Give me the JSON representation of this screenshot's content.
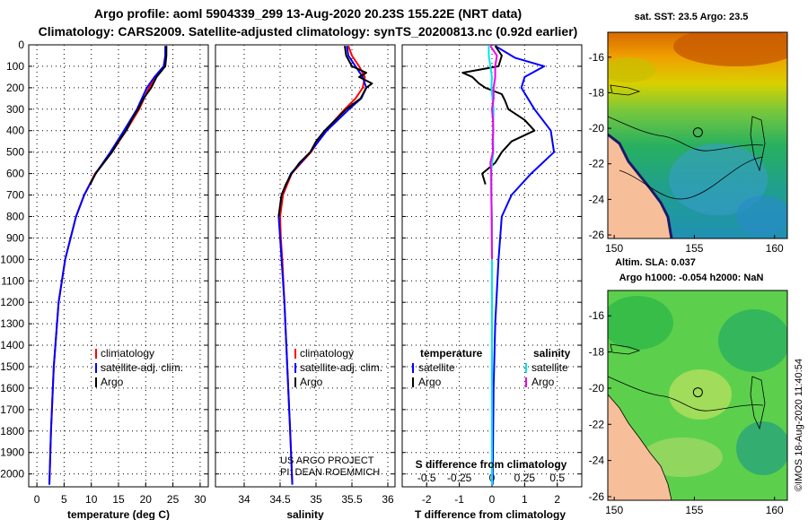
{
  "header": {
    "line1": "Argo profile: aoml 5904339_299 13-Aug-2020 20.23S 155.22E (NRT data)",
    "line2": "Climatology: CARS2009. Satellite-adjusted climatology: synTS_20200813.nc (0.92d earlier)"
  },
  "colors": {
    "climatology": "#ff0000",
    "satellite": "#0000ff",
    "argo": "#000000",
    "sat_temp": "#0000ff",
    "sat_sal": "#00e5ee",
    "argo_sal": "#ee00ee"
  },
  "credit": {
    "line1": "US ARGO PROJECT",
    "line2": "PI: DEAN ROEMMICH"
  },
  "copyright": "©IMOS 18-Aug-2020 11:40:54",
  "chart_data": [
    {
      "id": "temperature",
      "type": "line",
      "xlabel": "temperature (deg C)",
      "xlim": [
        -1.5,
        31.5
      ],
      "ylim": [
        0,
        2060
      ],
      "xticks": [
        0,
        5,
        10,
        15,
        20,
        25,
        30
      ],
      "yticks": [
        0,
        100,
        200,
        300,
        400,
        500,
        600,
        700,
        800,
        900,
        1000,
        1100,
        1200,
        1300,
        1400,
        1500,
        1600,
        1700,
        1800,
        1900,
        2000
      ],
      "legend": [
        "climatology",
        "satellite-adj. clim.",
        "Argo"
      ],
      "series": [
        {
          "name": "climatology",
          "color": "#ff0000",
          "depth": [
            5,
            50,
            100,
            150,
            200,
            300,
            400,
            500,
            600,
            700,
            800,
            1000,
            1200,
            1500,
            1800,
            2050
          ],
          "values": [
            23.8,
            23.7,
            23.4,
            21.9,
            20.6,
            18.8,
            16.4,
            13.8,
            10.7,
            8.7,
            7.2,
            5.2,
            4.0,
            3.1,
            2.6,
            2.3
          ]
        },
        {
          "name": "satellite-adj. clim.",
          "color": "#0000ff",
          "depth": [
            5,
            50,
            100,
            150,
            200,
            300,
            400,
            500,
            600,
            700,
            800,
            1000,
            1200,
            1500,
            1800,
            2050
          ],
          "values": [
            23.6,
            23.6,
            23.3,
            21.6,
            20.2,
            18.4,
            16.0,
            13.5,
            10.8,
            8.7,
            7.2,
            5.2,
            4.0,
            3.1,
            2.6,
            2.3
          ]
        },
        {
          "name": "Argo",
          "color": "#000000",
          "depth": [
            5,
            50,
            100,
            150,
            200,
            250,
            300,
            350,
            400,
            450,
            500,
            550,
            600,
            650
          ],
          "values": [
            23.8,
            23.8,
            23.6,
            22.0,
            21.0,
            19.6,
            18.6,
            17.4,
            16.4,
            15.0,
            13.8,
            12.3,
            10.8,
            9.8
          ]
        }
      ]
    },
    {
      "id": "salinity",
      "type": "line",
      "xlabel": "salinity",
      "xlim": [
        33.6,
        36.1
      ],
      "ylim": [
        0,
        2060
      ],
      "xticks": [
        34,
        34.5,
        35,
        35.5,
        36
      ],
      "yticks": [
        0,
        100,
        200,
        300,
        400,
        500,
        600,
        700,
        800,
        900,
        1000,
        1100,
        1200,
        1300,
        1400,
        1500,
        1600,
        1700,
        1800,
        1900,
        2000
      ],
      "legend": [
        "climatology",
        "satellite-adj. clim.",
        "Argo"
      ],
      "series": [
        {
          "name": "climatology",
          "color": "#ff0000",
          "depth": [
            5,
            50,
            100,
            150,
            200,
            250,
            300,
            400,
            500,
            600,
            700,
            800,
            900,
            1000,
            1200,
            1500,
            1800,
            2050
          ],
          "values": [
            35.45,
            35.5,
            35.6,
            35.68,
            35.65,
            35.55,
            35.4,
            35.13,
            34.93,
            34.66,
            34.54,
            34.5,
            34.51,
            34.53,
            34.56,
            34.6,
            34.64,
            34.67
          ]
        },
        {
          "name": "satellite-adj. clim.",
          "color": "#0000ff",
          "depth": [
            5,
            50,
            100,
            150,
            200,
            250,
            300,
            400,
            500,
            600,
            700,
            800,
            900,
            1000,
            1200,
            1500,
            1800,
            2050
          ],
          "values": [
            35.43,
            35.45,
            35.55,
            35.65,
            35.7,
            35.63,
            35.46,
            35.15,
            34.92,
            34.65,
            34.52,
            34.48,
            34.5,
            34.52,
            34.56,
            34.6,
            34.64,
            34.67
          ]
        },
        {
          "name": "Argo",
          "color": "#000000",
          "depth": [
            5,
            50,
            100,
            130,
            150,
            180,
            200,
            250,
            300,
            350,
            400,
            450,
            500,
            550,
            600,
            650,
            700,
            750,
            800
          ],
          "values": [
            35.4,
            35.42,
            35.5,
            35.7,
            35.6,
            35.78,
            35.7,
            35.62,
            35.42,
            35.27,
            35.12,
            35.0,
            34.92,
            34.77,
            34.66,
            34.58,
            34.52,
            34.5,
            34.48
          ]
        }
      ]
    },
    {
      "id": "difference",
      "type": "line",
      "xlabel": "T difference from climatology",
      "xlabel_top": "S difference from climatology",
      "xlim": [
        -2.75,
        2.75
      ],
      "ylim": [
        0,
        2060
      ],
      "xticks": [
        -2,
        -1,
        0,
        1,
        2
      ],
      "xticks_sal": [
        -0.5,
        -0.25,
        0,
        0.25,
        0.5
      ],
      "yticks": [
        0,
        100,
        200,
        300,
        400,
        500,
        600,
        700,
        800,
        900,
        1000,
        1100,
        1200,
        1300,
        1400,
        1500,
        1600,
        1700,
        1800,
        1900,
        2000
      ],
      "legend_left_title": "temperature",
      "legend_right_title": "salinity",
      "legend": [
        "satellite",
        "Argo",
        "satellite",
        "Argo"
      ],
      "series": [
        {
          "name": "temperature satellite",
          "color": "#0000ff",
          "depth": [
            5,
            60,
            100,
            150,
            200,
            300,
            400,
            500,
            600,
            700,
            800,
            1000,
            1300,
            1600,
            2050
          ],
          "values": [
            0.1,
            0.7,
            1.6,
            1.0,
            0.9,
            1.3,
            1.8,
            1.9,
            1.2,
            0.6,
            0.3,
            0.2,
            0.1,
            0.05,
            0.02
          ]
        },
        {
          "name": "temperature Argo",
          "color": "#000000",
          "depth": [
            5,
            50,
            100,
            130,
            150,
            180,
            200,
            230,
            260,
            300,
            350,
            400,
            450,
            500,
            550,
            600,
            650
          ],
          "values": [
            0.1,
            0.3,
            0.2,
            -0.9,
            -0.6,
            -0.4,
            -0.2,
            0.3,
            0.4,
            0.5,
            1.0,
            1.3,
            0.6,
            0.3,
            0.1,
            -0.3,
            -0.2
          ]
        },
        {
          "name": "salinity satellite",
          "color": "#00e5ee",
          "depth": [
            5,
            50,
            100,
            150,
            200,
            300,
            400,
            500,
            600,
            700,
            800,
            1000,
            1300,
            1600,
            2050
          ],
          "values": [
            -0.1,
            -0.1,
            -0.05,
            0.0,
            -0.02,
            0.05,
            0.03,
            0.04,
            -0.03,
            -0.02,
            0.0,
            0.0,
            0.0,
            0.0,
            0.0
          ]
        },
        {
          "name": "salinity Argo",
          "color": "#ee00ee",
          "depth": [
            5,
            50,
            100,
            150,
            200,
            250,
            300,
            350,
            400,
            450,
            500,
            550,
            600,
            650,
            700,
            800,
            1000
          ],
          "values": [
            -0.05,
            0.15,
            0.1,
            0.1,
            0.05,
            0.05,
            0.0,
            0.03,
            0.04,
            0.02,
            0.03,
            -0.05,
            -0.02,
            -0.02,
            -0.02,
            -0.01,
            0.0
          ]
        }
      ]
    },
    {
      "id": "sst_map",
      "type": "heatmap",
      "title": "sat. SST: 23.5 Argo: 23.5",
      "xticks": [
        150,
        155,
        160
      ],
      "yticks": [
        -16,
        -18,
        -20,
        -22,
        -24,
        -26
      ],
      "xlim": [
        149.6,
        160.8
      ],
      "ylim": [
        -14.6,
        -26.2
      ],
      "float_position": {
        "lon": 155.22,
        "lat": -20.23
      }
    },
    {
      "id": "sla_map",
      "type": "heatmap",
      "title": "Altim. SLA: 0.037",
      "subtitle": "Argo h1000: -0.054 h2000: NaN",
      "xticks": [
        150,
        155,
        160
      ],
      "yticks": [
        -16,
        -18,
        -20,
        -22,
        -24,
        -26
      ],
      "xlim": [
        149.6,
        160.8
      ],
      "ylim": [
        -14.6,
        -26.2
      ],
      "float_position": {
        "lon": 155.22,
        "lat": -20.23
      }
    }
  ]
}
